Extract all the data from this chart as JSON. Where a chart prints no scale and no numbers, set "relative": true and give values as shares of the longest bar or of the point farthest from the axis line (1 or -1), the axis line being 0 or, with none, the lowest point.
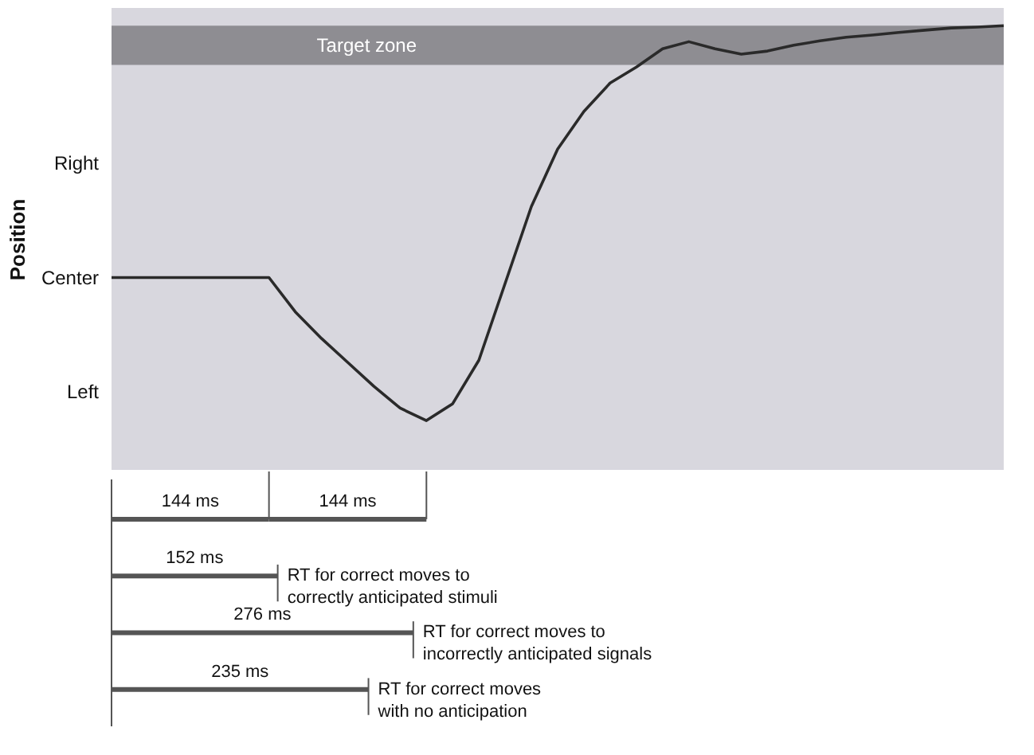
{
  "chart_data": [
    {
      "type": "line",
      "ylabel": "Position",
      "relative": true,
      "grid": false,
      "categories": [
        null,
        null,
        null,
        null,
        null,
        null,
        null,
        null,
        null,
        null,
        null,
        null,
        null,
        null,
        null,
        null,
        null,
        null,
        null,
        null,
        null,
        null,
        null,
        null,
        null,
        null,
        null,
        null,
        null,
        null,
        null,
        null,
        null,
        null,
        null
      ],
      "series": [
        {
          "color": "#2a2a2a",
          "values": [
            0.433,
            0.433,
            0.433,
            0.433,
            0.433,
            0.433,
            0.433,
            0.356,
            0.296,
            0.242,
            0.188,
            0.139,
            0.111,
            0.149,
            0.247,
            0.42,
            0.593,
            0.722,
            0.807,
            0.871,
            0.907,
            0.948,
            0.964,
            0.948,
            0.936,
            0.943,
            0.956,
            0.966,
            0.974,
            0.979,
            0.985,
            0.99,
            0.995,
            0.997,
            1
          ]
        }
      ],
      "bands": [
        {
          "axis": "y",
          "from": 0.912,
          "to": 1,
          "label": "Target zone",
          "color": "#8e8d92"
        }
      ],
      "annotations": [
        "Right",
        "Center",
        "Left"
      ]
    },
    {
      "type": "bar",
      "orientation": "horizontal",
      "stacked": true,
      "ref_lines": [
        {
          "axis": "x",
          "value": 144
        },
        {
          "axis": "x",
          "value": 288
        }
      ],
      "categories": [
        null,
        null,
        null,
        null
      ],
      "series": [
        {
          "color": "#555555",
          "values": [
            144,
            152,
            276,
            235
          ],
          "value_labels": [
            "144 ms",
            "152 ms",
            "276 ms",
            "235 ms"
          ]
        },
        {
          "color": "#555555",
          "values": [
            144,
            null,
            null,
            null
          ],
          "value_labels": [
            "144 ms",
            null,
            null,
            null
          ]
        }
      ],
      "annotations": [
        "RT for correct moves to\ncorrectly anticipated stimuli",
        "RT for correct moves to\nincorrectly anticipated signals",
        "RT for correct moves\nwith no anticipation"
      ]
    }
  ]
}
